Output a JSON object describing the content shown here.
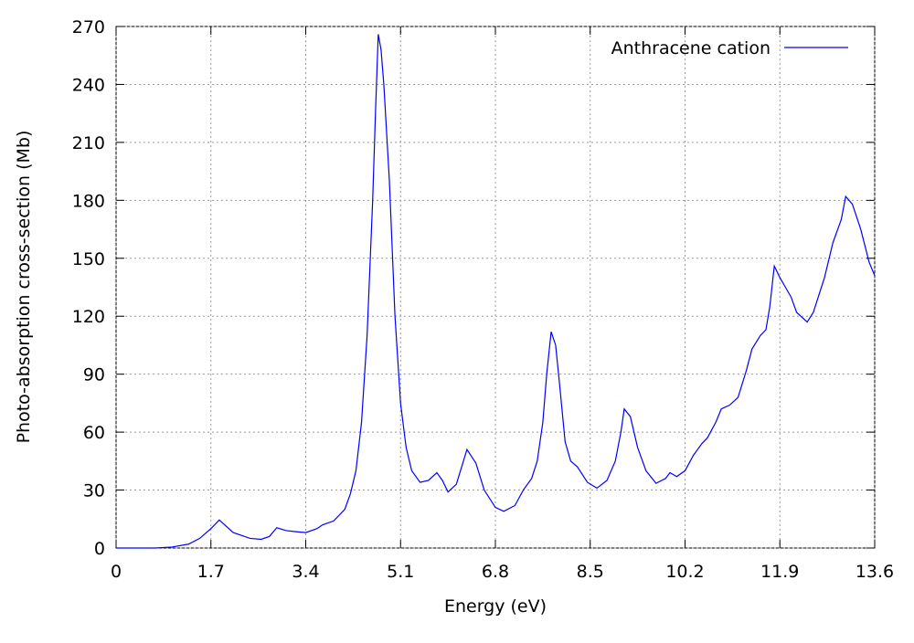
{
  "chart_data": {
    "type": "line",
    "xlabel": "Energy (eV)",
    "ylabel": "Photo-absorption cross-section (Mb)",
    "xlim": [
      0,
      13.6
    ],
    "xticks": [
      0,
      1.7,
      3.4,
      5.1,
      6.8,
      8.5,
      10.2,
      11.9,
      13.6
    ],
    "ylim": [
      0,
      270
    ],
    "yticks": [
      0,
      30,
      60,
      90,
      120,
      150,
      180,
      210,
      240,
      270
    ],
    "grid": true,
    "legend_position": "upper right",
    "series": [
      {
        "name": "Anthracene cation",
        "color": "#0000ff",
        "x": [
          0,
          0.7,
          1.0,
          1.3,
          1.5,
          1.7,
          1.85,
          2.1,
          2.4,
          2.6,
          2.75,
          2.88,
          3.05,
          3.2,
          3.4,
          3.6,
          3.7,
          3.9,
          4.1,
          4.2,
          4.3,
          4.4,
          4.5,
          4.6,
          4.65,
          4.7,
          4.75,
          4.8,
          4.9,
          5.0,
          5.1,
          5.2,
          5.3,
          5.45,
          5.6,
          5.75,
          5.85,
          5.95,
          6.1,
          6.29,
          6.45,
          6.6,
          6.8,
          6.95,
          7.15,
          7.3,
          7.45,
          7.55,
          7.65,
          7.72,
          7.8,
          7.88,
          7.95,
          8.05,
          8.15,
          8.27,
          8.45,
          8.62,
          8.8,
          8.95,
          9.05,
          9.11,
          9.22,
          9.35,
          9.5,
          9.68,
          9.85,
          9.93,
          10.05,
          10.2,
          10.35,
          10.5,
          10.6,
          10.75,
          10.85,
          11.0,
          11.15,
          11.3,
          11.4,
          11.55,
          11.65,
          11.72,
          11.8,
          11.9,
          12.0,
          12.1,
          12.2,
          12.39,
          12.5,
          12.7,
          12.85,
          13.0,
          13.08,
          13.2,
          13.35,
          13.5,
          13.6
        ],
        "values": [
          0,
          0,
          0.5,
          2,
          5,
          10,
          14.5,
          8,
          5,
          4.5,
          6,
          10.5,
          9,
          8.5,
          8,
          10,
          12,
          14,
          20,
          28,
          40,
          65,
          110,
          180,
          225,
          266,
          258,
          240,
          190,
          120,
          75,
          52,
          40,
          34,
          35,
          39,
          35,
          29,
          33,
          51,
          44,
          30,
          21,
          19,
          22,
          30,
          36,
          45,
          65,
          90,
          112,
          105,
          85,
          55,
          45,
          42,
          34,
          31,
          35,
          45,
          60,
          72,
          68,
          52,
          40,
          33.5,
          36,
          39,
          37,
          40,
          48,
          54,
          57,
          65,
          72,
          74,
          78,
          92,
          103,
          110,
          113,
          125,
          146,
          140,
          135,
          130,
          122,
          117,
          122,
          140,
          158,
          170,
          182,
          178,
          165,
          148,
          141
        ]
      }
    ]
  }
}
